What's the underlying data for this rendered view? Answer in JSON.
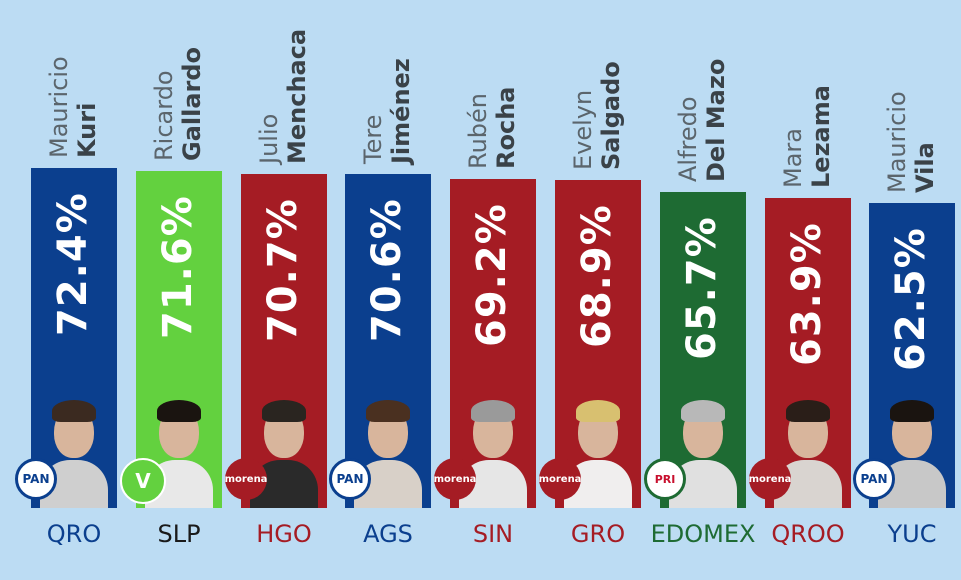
{
  "chart_data": {
    "type": "bar",
    "title": "",
    "xlabel": "",
    "ylabel": "",
    "ylim": [
      0,
      100
    ],
    "categories": [
      "QRO",
      "SLP",
      "HGO",
      "AGS",
      "SIN",
      "GRO",
      "EDOMEX",
      "QROO",
      "YUC"
    ],
    "values": [
      72.4,
      71.6,
      70.7,
      70.6,
      69.2,
      68.9,
      65.7,
      63.9,
      62.5
    ],
    "value_labels": [
      "72.4%",
      "71.6%",
      "70.7%",
      "70.6%",
      "69.2%",
      "68.9%",
      "65.7%",
      "63.9%",
      "62.5%"
    ],
    "first_names": [
      "Mauricio",
      "Ricardo",
      "Julio",
      "Tere",
      "Rubén",
      "Evelyn",
      "Alfredo",
      "Mara",
      "Mauricio"
    ],
    "last_names": [
      "Kuri",
      "Gallardo",
      "Menchaca",
      "Jiménez",
      "Rocha",
      "Salgado",
      "Del Mazo",
      "Lezama",
      "Vila"
    ],
    "parties": [
      "PAN",
      "PVEM",
      "morena",
      "PAN",
      "morena",
      "morena",
      "PRI",
      "morena",
      "PAN"
    ],
    "bar_colors": [
      "#0b3f8e",
      "#63d13f",
      "#a51c24",
      "#0b3f8e",
      "#a51c24",
      "#a51c24",
      "#1e6b33",
      "#a51c24",
      "#0b3f8e"
    ],
    "state_colors": [
      "#0b3f8e",
      "#1a1a1a",
      "#a51c24",
      "#0b3f8e",
      "#a51c24",
      "#a51c24",
      "#1e6b33",
      "#a51c24",
      "#0b3f8e"
    ]
  },
  "party_logo_text": {
    "PAN": "PAN",
    "PVEM": "V",
    "morena": "morena",
    "PRI": "PRI"
  },
  "colors": {
    "background": "#bcdcf3",
    "pan": "#0b3f8e",
    "morena": "#a51c24",
    "pvem": "#63d13f",
    "pri": "#1e6b33"
  }
}
